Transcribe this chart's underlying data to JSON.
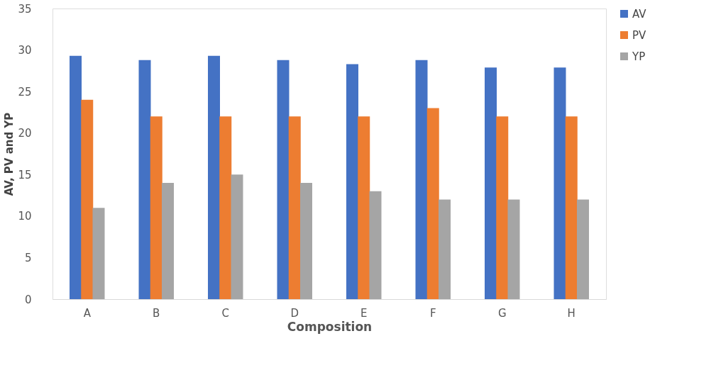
{
  "chart_data": {
    "type": "bar",
    "xlabel": "Composition",
    "ylabel": "AV, PV and YP",
    "categories": [
      "A",
      "B",
      "C",
      "D",
      "E",
      "F",
      "G",
      "H"
    ],
    "series": [
      {
        "name": "AV",
        "color": "#4472c4",
        "values": [
          29.3,
          28.8,
          29.3,
          28.8,
          28.3,
          28.8,
          27.9,
          27.9
        ]
      },
      {
        "name": "PV",
        "color": "#ed7d31",
        "values": [
          24,
          22,
          22,
          22,
          22,
          23,
          22,
          22
        ]
      },
      {
        "name": "YP",
        "color": "#a5a5a5",
        "values": [
          11,
          14,
          15,
          14,
          13,
          12,
          12,
          12
        ]
      }
    ],
    "ylim": [
      0,
      35
    ],
    "yticks": [
      0,
      5,
      10,
      15,
      20,
      25,
      30,
      35
    ],
    "grid": false,
    "legend": "right"
  }
}
